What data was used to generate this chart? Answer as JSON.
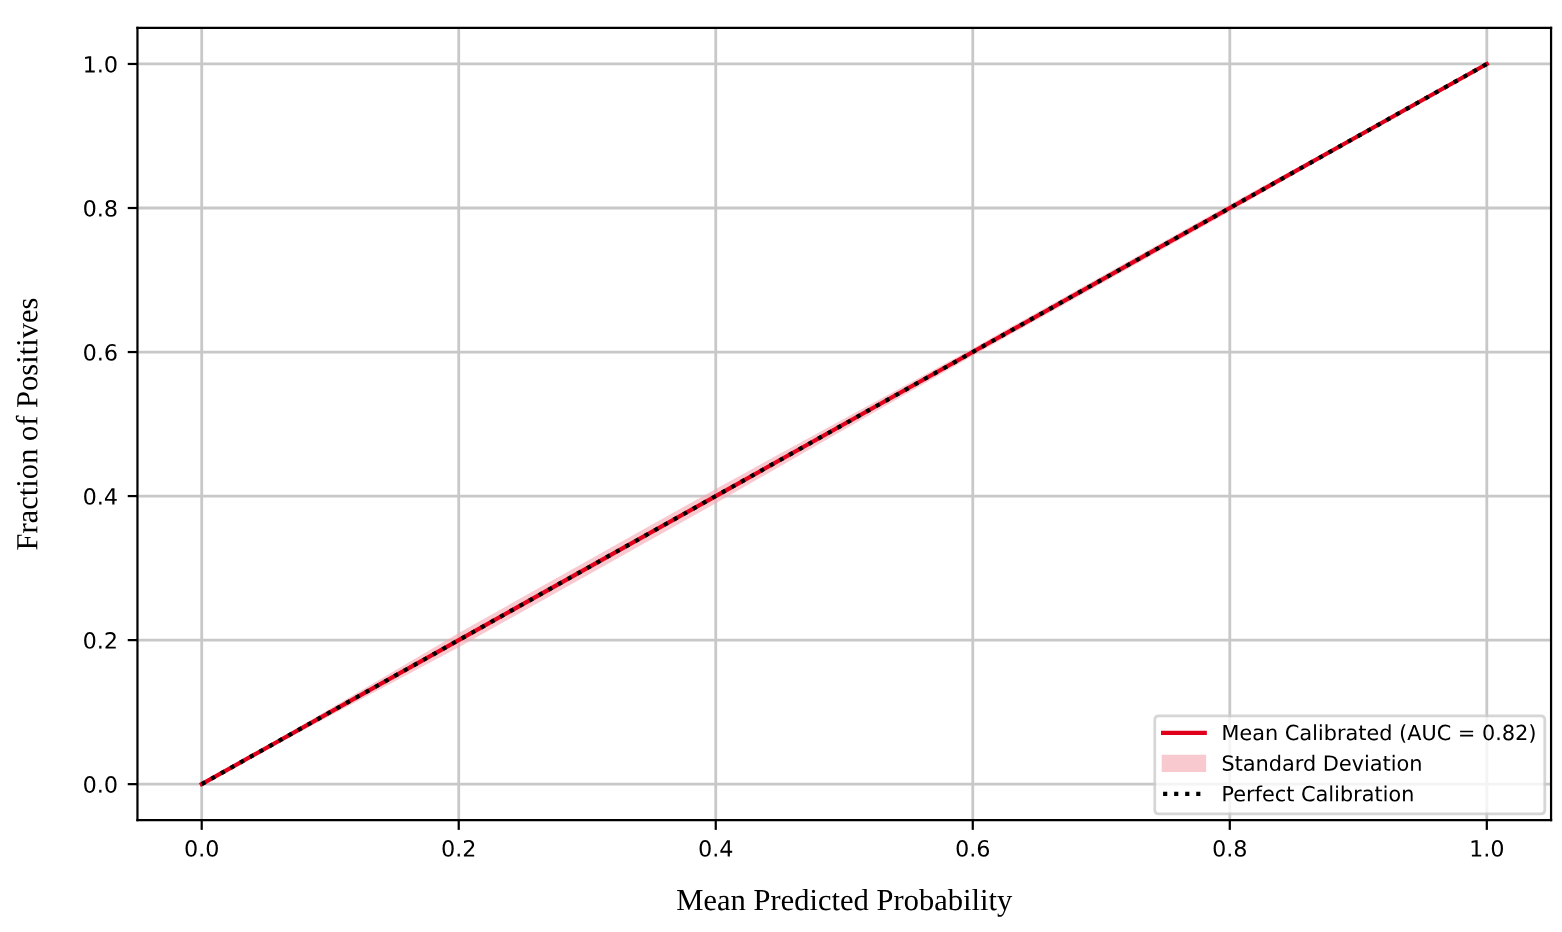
{
  "chart_data": {
    "type": "line",
    "xlabel": "Mean Predicted Probability",
    "ylabel": "Fraction of Positives",
    "xlim": [
      -0.05,
      1.05
    ],
    "ylim": [
      -0.05,
      1.05
    ],
    "xticks": [
      {
        "value": 0,
        "label": "0.0"
      },
      0.2,
      0.4,
      0.6,
      0.8,
      {
        "value": 1,
        "label": "1.0"
      }
    ],
    "yticks": [
      {
        "value": 0,
        "label": "0.0"
      },
      0.2,
      0.4,
      0.6,
      0.8,
      {
        "value": 1,
        "label": "1.0"
      }
    ],
    "grid": true,
    "legend": "bottom right",
    "series": [
      {
        "name": "Mean Calibrated (AUC = 0.82)",
        "type": "line",
        "color": "#e0001b",
        "x": [
          0,
          0.2,
          0.4,
          0.6,
          0.8,
          1
        ],
        "values": [
          0,
          0.2,
          0.4,
          0.6,
          0.8,
          1
        ],
        "lower": [
          0,
          0.19,
          0.39,
          0.595,
          0.795,
          1
        ],
        "upper": [
          0,
          0.21,
          0.41,
          0.605,
          0.805,
          1
        ],
        "line_style": "solid"
      },
      {
        "name": "Standard Deviation",
        "type": "area",
        "color": "#f4a6b0"
      },
      {
        "name": "Perfect Calibration",
        "type": "line",
        "color": "#000000",
        "x": [
          0,
          1
        ],
        "values": [
          0,
          1
        ],
        "line_style": "dotted"
      }
    ]
  }
}
